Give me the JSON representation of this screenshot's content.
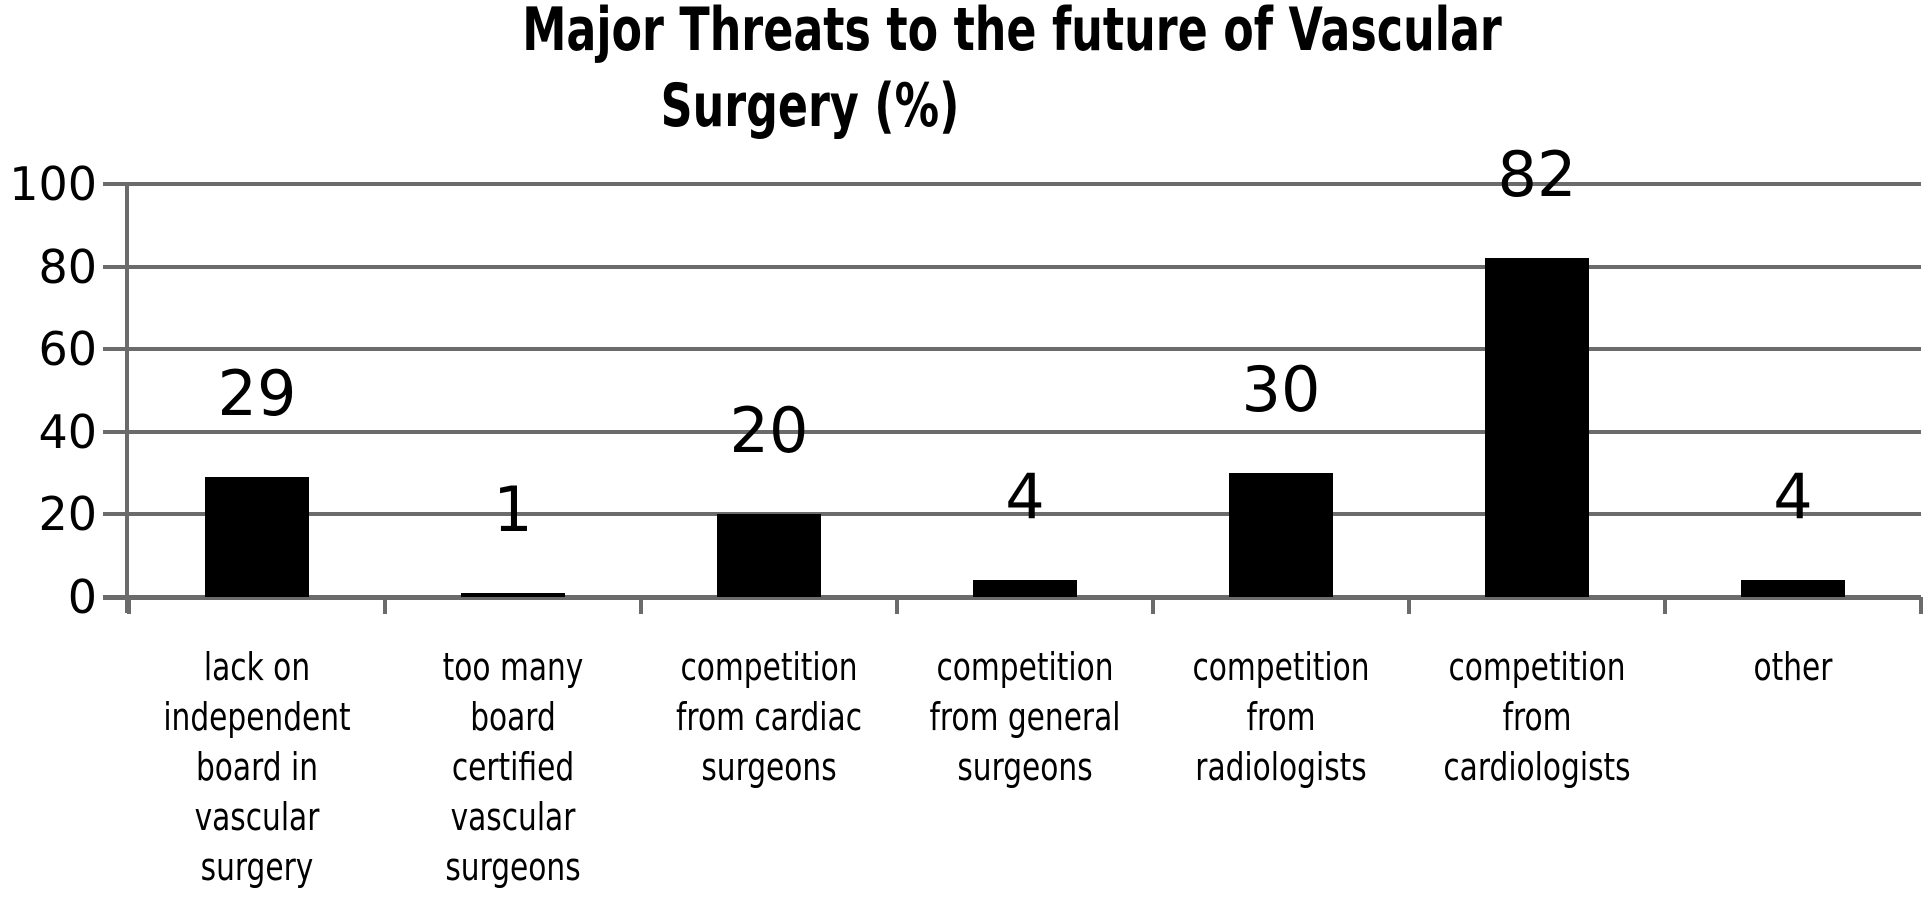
{
  "chart_data": {
    "type": "bar",
    "title": "Major Threats to the future of Vascular Surgery (%)",
    "title_lines": [
      "Major Threats to the future of Vascular",
      "Surgery (%)"
    ],
    "categories": [
      "lack on independent board in vascular surgery",
      "too many board certified vascular surgeons",
      "competition from cardiac surgeons",
      "competition from general surgeons",
      "competition from radiologists",
      "competition from cardiologists",
      "other"
    ],
    "category_label_lines": [
      "lack on\nindependent\nboard in\nvascular\nsurgery",
      "too many\nboard\ncertified\nvascular\nsurgeons",
      "competition\nfrom cardiac\nsurgeons",
      "competition\nfrom general\nsurgeons",
      "competition\nfrom\nradiologists",
      "competition\nfrom\ncardiologists",
      "other"
    ],
    "values": [
      29,
      1,
      20,
      4,
      30,
      82,
      4
    ],
    "data_labels_shown": true,
    "xlabel": "",
    "ylabel": "",
    "ylim": [
      0,
      100
    ],
    "yticks": [
      0,
      20,
      40,
      60,
      80,
      100
    ],
    "grid": true,
    "legend": "none",
    "bar_color": "#000000",
    "gridline_color": "#6b6b6b",
    "text_color": "#000000",
    "background_color": "#ffffff"
  }
}
